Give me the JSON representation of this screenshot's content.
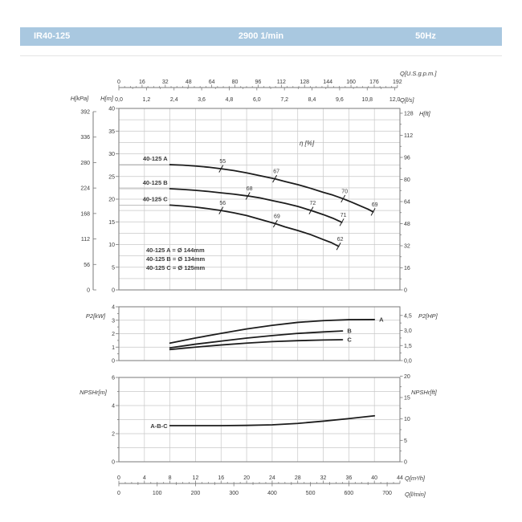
{
  "header": {
    "model": "IR40-125",
    "speed": "2900 1/min",
    "frequency": "50Hz",
    "bar_color": "#a9c8e0"
  },
  "axes": {
    "top_gpm": {
      "label": "Q[U.S.g.p.m.]",
      "ticks": [
        0,
        16,
        32,
        48,
        64,
        80,
        96,
        112,
        128,
        144,
        160,
        176,
        192
      ]
    },
    "top_ls": {
      "label": "Q[l/s]",
      "ticks": [
        "0,0",
        "1,2",
        "2,4",
        "3,6",
        "4,8",
        "6,0",
        "7,2",
        "8,4",
        "9,6",
        "10,8",
        "12,0"
      ]
    },
    "left_kpa": {
      "label": "H[kPa]",
      "ticks": [
        392,
        336,
        280,
        224,
        168,
        112,
        56,
        0
      ]
    },
    "left_m": {
      "label": "H[m]",
      "ticks": [
        40,
        35,
        30,
        25,
        20,
        15,
        10,
        5,
        0
      ]
    },
    "right_ft": {
      "label": "H[ft]",
      "ticks": [
        128,
        112,
        96,
        80,
        64,
        48,
        32,
        16,
        0
      ]
    },
    "p2_left": {
      "label": "P2[kW]",
      "ticks": [
        4,
        3,
        2,
        1,
        0
      ]
    },
    "p2_right": {
      "label": "P2[HP]",
      "ticks": [
        "4,5",
        "3,0",
        "1,5",
        "0,0"
      ]
    },
    "npsh_left": {
      "label": "NPSHr[m]",
      "ticks": [
        6,
        4,
        2,
        0
      ]
    },
    "npsh_right": {
      "label": "NPSHr[ft]",
      "ticks": [
        20,
        15,
        10,
        5,
        0
      ]
    },
    "bottom_m3h": {
      "label": "Q[m³/h]",
      "ticks": [
        0,
        4,
        8,
        12,
        16,
        20,
        24,
        28,
        32,
        36,
        40,
        44
      ]
    },
    "bottom_lmin": {
      "label": "Q[l/min]",
      "ticks": [
        0,
        100,
        200,
        300,
        400,
        500,
        600,
        700
      ]
    }
  },
  "chart_data": [
    {
      "id": "head_chart",
      "type": "line",
      "xlabel": "Q[m³/h]",
      "ylabel": "H[m]",
      "xlim": [
        0,
        44
      ],
      "ylim": [
        0,
        40
      ],
      "grid_step_y": 2.5,
      "grid_step_x": 4,
      "eta_label": "η [%]",
      "impeller_legend": [
        "40-125 A = Ø 144mm",
        "40-125 B = Ø 134mm",
        "40-125 C = Ø 125mm"
      ],
      "series": [
        {
          "name": "40-125 A",
          "points": [
            [
              8,
              27.6
            ],
            [
              10,
              27.5
            ],
            [
              12,
              27.3
            ],
            [
              14,
              27.05
            ],
            [
              16,
              26.7
            ],
            [
              18,
              26.3
            ],
            [
              20,
              25.8
            ],
            [
              22,
              25.2
            ],
            [
              24.4,
              24.5
            ],
            [
              26,
              23.9
            ],
            [
              28,
              23.2
            ],
            [
              30,
              22.4
            ],
            [
              32,
              21.5
            ],
            [
              33.5,
              20.9
            ],
            [
              35.1,
              20.1
            ],
            [
              36.5,
              19.3
            ],
            [
              38,
              18.4
            ],
            [
              39,
              17.8
            ],
            [
              39.8,
              17.2
            ]
          ],
          "efficiency_marks": [
            {
              "value": 55,
              "q": 16,
              "h": 26.7
            },
            {
              "value": 67,
              "q": 24.4,
              "h": 24.5
            },
            {
              "value": 70,
              "q": 35.1,
              "h": 20.1
            },
            {
              "value": 69,
              "q": 39.8,
              "h": 17.2
            }
          ]
        },
        {
          "name": "40-125 B",
          "points": [
            [
              8,
              22.3
            ],
            [
              10,
              22.15
            ],
            [
              12,
              21.95
            ],
            [
              14,
              21.7
            ],
            [
              16,
              21.4
            ],
            [
              18,
              21.1
            ],
            [
              20.2,
              20.7
            ],
            [
              22,
              20.3
            ],
            [
              24,
              19.7
            ],
            [
              26,
              19.1
            ],
            [
              28,
              18.4
            ],
            [
              30.1,
              17.5
            ],
            [
              32,
              16.6
            ],
            [
              33.5,
              15.8
            ],
            [
              34.9,
              14.9
            ]
          ],
          "efficiency_marks": [
            {
              "value": 68,
              "q": 20.2,
              "h": 20.7
            },
            {
              "value": 72,
              "q": 30.1,
              "h": 17.5
            },
            {
              "value": 71,
              "q": 34.9,
              "h": 14.9
            }
          ]
        },
        {
          "name": "40-125 C",
          "points": [
            [
              8,
              18.7
            ],
            [
              10,
              18.5
            ],
            [
              12,
              18.25
            ],
            [
              14,
              17.9
            ],
            [
              16,
              17.5
            ],
            [
              18,
              17.0
            ],
            [
              20,
              16.4
            ],
            [
              22,
              15.6
            ],
            [
              24.5,
              14.6
            ],
            [
              26,
              13.9
            ],
            [
              28,
              13.1
            ],
            [
              30,
              12.2
            ],
            [
              32,
              11.1
            ],
            [
              33.3,
              10.4
            ],
            [
              34.4,
              9.6
            ]
          ],
          "efficiency_marks": [
            {
              "value": 56,
              "q": 16,
              "h": 17.5
            },
            {
              "value": 69,
              "q": 24.5,
              "h": 14.6
            },
            {
              "value": 62,
              "q": 34.4,
              "h": 9.6
            }
          ]
        }
      ]
    },
    {
      "id": "power_chart",
      "type": "line",
      "xlabel": "Q[m³/h]",
      "ylabel": "P2[kW]",
      "xlim": [
        0,
        44
      ],
      "ylim": [
        0,
        4
      ],
      "grid_step_y": 1,
      "grid_step_x": 4,
      "series": [
        {
          "name": "A",
          "points": [
            [
              8,
              1.3
            ],
            [
              12,
              1.68
            ],
            [
              16,
              2.02
            ],
            [
              20,
              2.35
            ],
            [
              24,
              2.62
            ],
            [
              28,
              2.84
            ],
            [
              32,
              2.97
            ],
            [
              36,
              3.04
            ],
            [
              40,
              3.05
            ]
          ]
        },
        {
          "name": "B",
          "points": [
            [
              8,
              0.95
            ],
            [
              12,
              1.22
            ],
            [
              16,
              1.45
            ],
            [
              20,
              1.67
            ],
            [
              24,
              1.86
            ],
            [
              28,
              2.02
            ],
            [
              32,
              2.13
            ],
            [
              35,
              2.2
            ]
          ]
        },
        {
          "name": "C",
          "points": [
            [
              8,
              0.82
            ],
            [
              12,
              1.0
            ],
            [
              16,
              1.16
            ],
            [
              20,
              1.3
            ],
            [
              24,
              1.41
            ],
            [
              28,
              1.48
            ],
            [
              32,
              1.53
            ],
            [
              35,
              1.55
            ]
          ]
        }
      ]
    },
    {
      "id": "npsh_chart",
      "type": "line",
      "xlabel": "Q[m³/h]",
      "ylabel": "NPSHr[m]",
      "xlim": [
        0,
        44
      ],
      "ylim": [
        0,
        6
      ],
      "grid_step_y": 1,
      "grid_step_x": 4,
      "series": [
        {
          "name": "A-B-C",
          "points": [
            [
              8,
              2.57
            ],
            [
              12,
              2.57
            ],
            [
              16,
              2.57
            ],
            [
              20,
              2.59
            ],
            [
              24,
              2.63
            ],
            [
              28,
              2.73
            ],
            [
              32,
              2.89
            ],
            [
              36,
              3.07
            ],
            [
              40,
              3.27
            ]
          ]
        }
      ]
    }
  ],
  "colors": {
    "grid": "#c8c8c8",
    "frame": "#7a7a7a",
    "curve": "#1c1c1c",
    "text": "#3a3a3a",
    "light_line": "#a8a8a8"
  }
}
